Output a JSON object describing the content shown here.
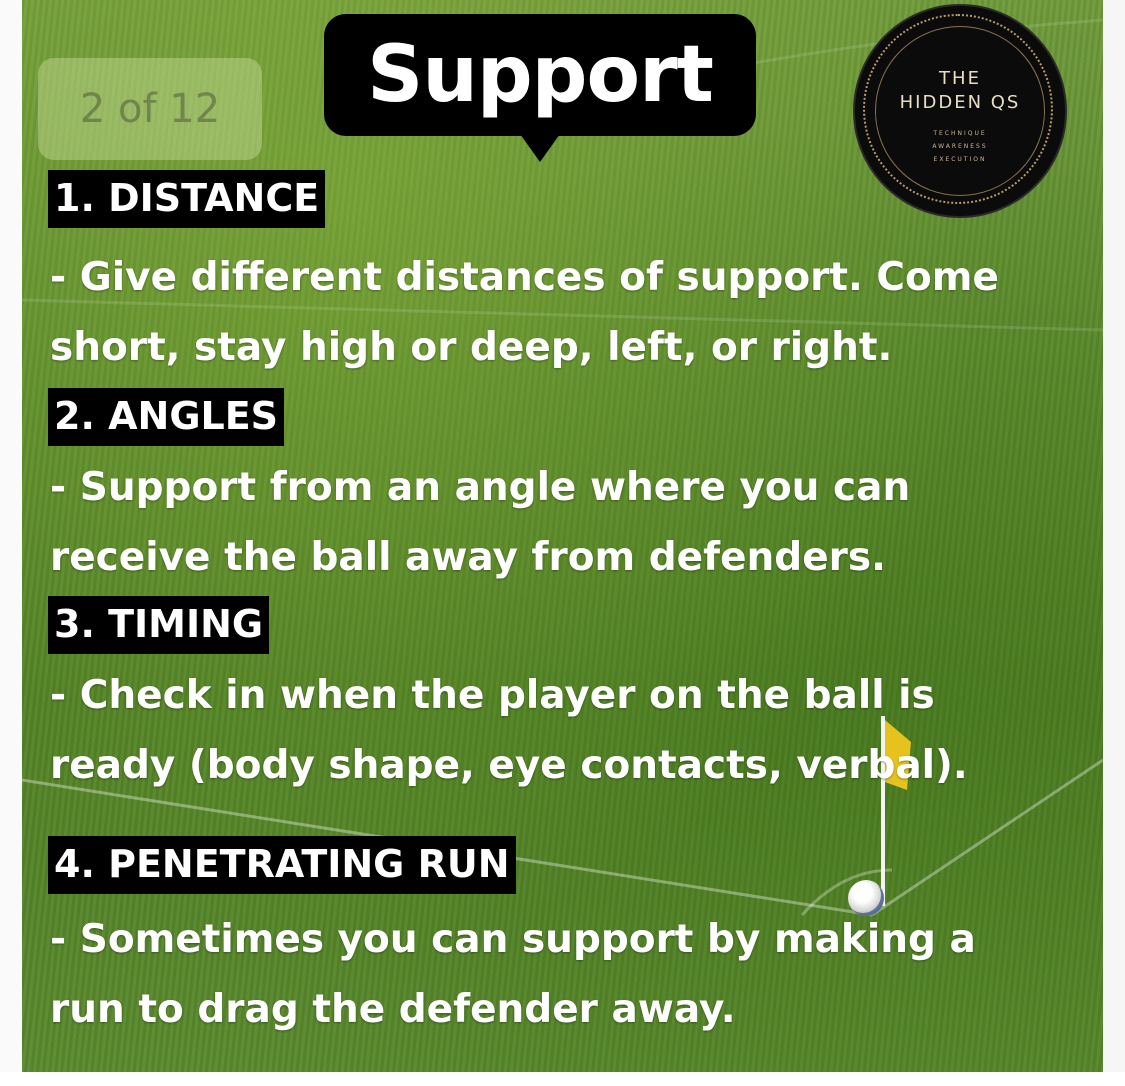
{
  "page_indicator": "2 of 12",
  "title": "Support",
  "logo": {
    "line1": "THE",
    "line2": "HIDDEN QS",
    "tags": [
      "TECHNIQUE",
      "AWARENESS",
      "EXECUTION"
    ]
  },
  "sections": [
    {
      "heading": "1. DISTANCE",
      "body": "- Give different distances of support. Come short, stay high or deep, left, or right."
    },
    {
      "heading": "2. ANGLES",
      "body": "- Support from an angle where you can receive the ball away from defenders."
    },
    {
      "heading": "3. TIMING",
      "body": "- Check in when the player on the ball is ready (body shape, eye contacts, verbal)."
    },
    {
      "heading": "4. PENETRATING RUN",
      "body": "- Sometimes you can support by making a run to drag the defender away."
    }
  ],
  "colors": {
    "grass": "#5b8a2c",
    "label_bg": "#000000",
    "text": "#ffffff",
    "logo_gold": "#b89b6a"
  }
}
